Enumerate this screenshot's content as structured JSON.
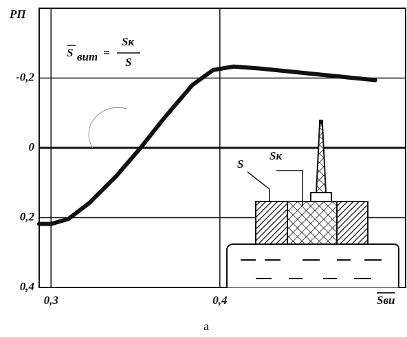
{
  "chart_data": {
    "type": "line",
    "y_label": "РП",
    "x_label": "Sви",
    "formula": {
      "left": "S",
      "left_sub": "вит",
      "equals": "=",
      "numerator": "Sк",
      "denominator": "S"
    },
    "inset_labels": [
      "S",
      "Sк"
    ],
    "caption": "а",
    "x": [
      0.293,
      0.3,
      0.3102,
      0.3224,
      0.3388,
      0.353,
      0.3673,
      0.3837,
      0.396,
      0.408,
      0.4245,
      0.453,
      0.492
    ],
    "values": [
      0.218,
      0.218,
      0.204,
      0.159,
      0.08,
      0.0,
      -0.087,
      -0.18,
      -0.223,
      -0.233,
      -0.227,
      -0.213,
      -0.194
    ],
    "color": "#111111",
    "xlim": [
      0.293,
      0.51
    ],
    "ylim": [
      0.4,
      -0.4
    ],
    "xticks": [
      {
        "value": 0.3,
        "label": "0,3"
      },
      {
        "value": 0.4,
        "label": "0,4"
      }
    ],
    "yticks": [
      {
        "value": -0.2,
        "label": "-0,2"
      },
      {
        "value": 0,
        "label": "0"
      },
      {
        "value": 0.2,
        "label": "0,2"
      },
      {
        "value": 0.4,
        "label": "0,4"
      }
    ],
    "grid": true
  }
}
